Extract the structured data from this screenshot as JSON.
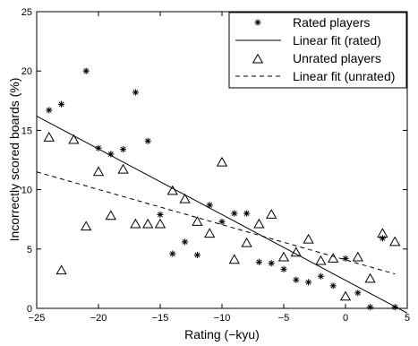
{
  "chart_data": {
    "type": "scatter",
    "xlabel": "Rating (−kyu)",
    "ylabel": "Incorrectly scored boards (%)",
    "xlim": [
      -25,
      5
    ],
    "ylim": [
      0,
      25
    ],
    "xticks": [
      -25,
      -20,
      -15,
      -10,
      -5,
      0,
      5
    ],
    "yticks": [
      0,
      5,
      10,
      15,
      20,
      25
    ],
    "xtick_labels": [
      "−25",
      "−20",
      "−15",
      "−10",
      "−5",
      "0",
      "5"
    ],
    "ytick_labels": [
      "0",
      "5",
      "10",
      "15",
      "20",
      "25"
    ],
    "grid": false,
    "legend_position": "top-right",
    "legend": [
      {
        "label": "Rated players",
        "marker": "star"
      },
      {
        "label": "Linear fit (rated)",
        "line": "solid"
      },
      {
        "label": "Unrated players",
        "marker": "triangle"
      },
      {
        "label": "Linear fit (unrated)",
        "line": "dashed"
      }
    ],
    "series": [
      {
        "name": "Rated players",
        "marker": "star",
        "points": [
          [
            -24,
            16.7
          ],
          [
            -23,
            17.2
          ],
          [
            -21,
            20.0
          ],
          [
            -20,
            13.5
          ],
          [
            -19,
            13.0
          ],
          [
            -18,
            13.4
          ],
          [
            -17,
            18.2
          ],
          [
            -16,
            14.1
          ],
          [
            -15,
            7.9
          ],
          [
            -14,
            4.6
          ],
          [
            -13,
            5.6
          ],
          [
            -12,
            4.5
          ],
          [
            -11,
            8.7
          ],
          [
            -10,
            7.3
          ],
          [
            -9,
            8.0
          ],
          [
            -8,
            8.0
          ],
          [
            -7,
            3.9
          ],
          [
            -6,
            3.8
          ],
          [
            -5,
            3.3
          ],
          [
            -4,
            2.4
          ],
          [
            -3,
            2.2
          ],
          [
            -2,
            2.7
          ],
          [
            -1,
            1.9
          ],
          [
            0,
            4.2
          ],
          [
            1,
            1.3
          ],
          [
            2,
            0.1
          ],
          [
            3,
            5.9
          ],
          [
            4,
            0.1
          ]
        ]
      },
      {
        "name": "Unrated players",
        "marker": "triangle",
        "points": [
          [
            -24,
            14.4
          ],
          [
            -23,
            3.2
          ],
          [
            -22,
            14.2
          ],
          [
            -21,
            6.9
          ],
          [
            -20,
            11.5
          ],
          [
            -19,
            7.8
          ],
          [
            -18,
            11.7
          ],
          [
            -17,
            7.1
          ],
          [
            -16,
            7.1
          ],
          [
            -15,
            7.1
          ],
          [
            -14,
            9.9
          ],
          [
            -13,
            9.2
          ],
          [
            -12,
            7.3
          ],
          [
            -11,
            6.3
          ],
          [
            -10,
            12.3
          ],
          [
            -9,
            4.1
          ],
          [
            -8,
            5.5
          ],
          [
            -7,
            7.1
          ],
          [
            -6,
            7.9
          ],
          [
            -5,
            4.3
          ],
          [
            -4,
            4.7
          ],
          [
            -3,
            5.8
          ],
          [
            -2,
            4.0
          ],
          [
            -1,
            4.2
          ],
          [
            0,
            1.0
          ],
          [
            1,
            4.3
          ],
          [
            2,
            2.5
          ],
          [
            3,
            6.3
          ],
          [
            4,
            5.6
          ]
        ]
      }
    ],
    "fits": [
      {
        "name": "Linear fit (rated)",
        "style": "solid",
        "x": [
          -25,
          5
        ],
        "y": [
          16.2,
          -0.4
        ]
      },
      {
        "name": "Linear fit (unrated)",
        "style": "dashed",
        "x": [
          -25,
          4
        ],
        "y": [
          11.5,
          2.9
        ]
      }
    ]
  }
}
